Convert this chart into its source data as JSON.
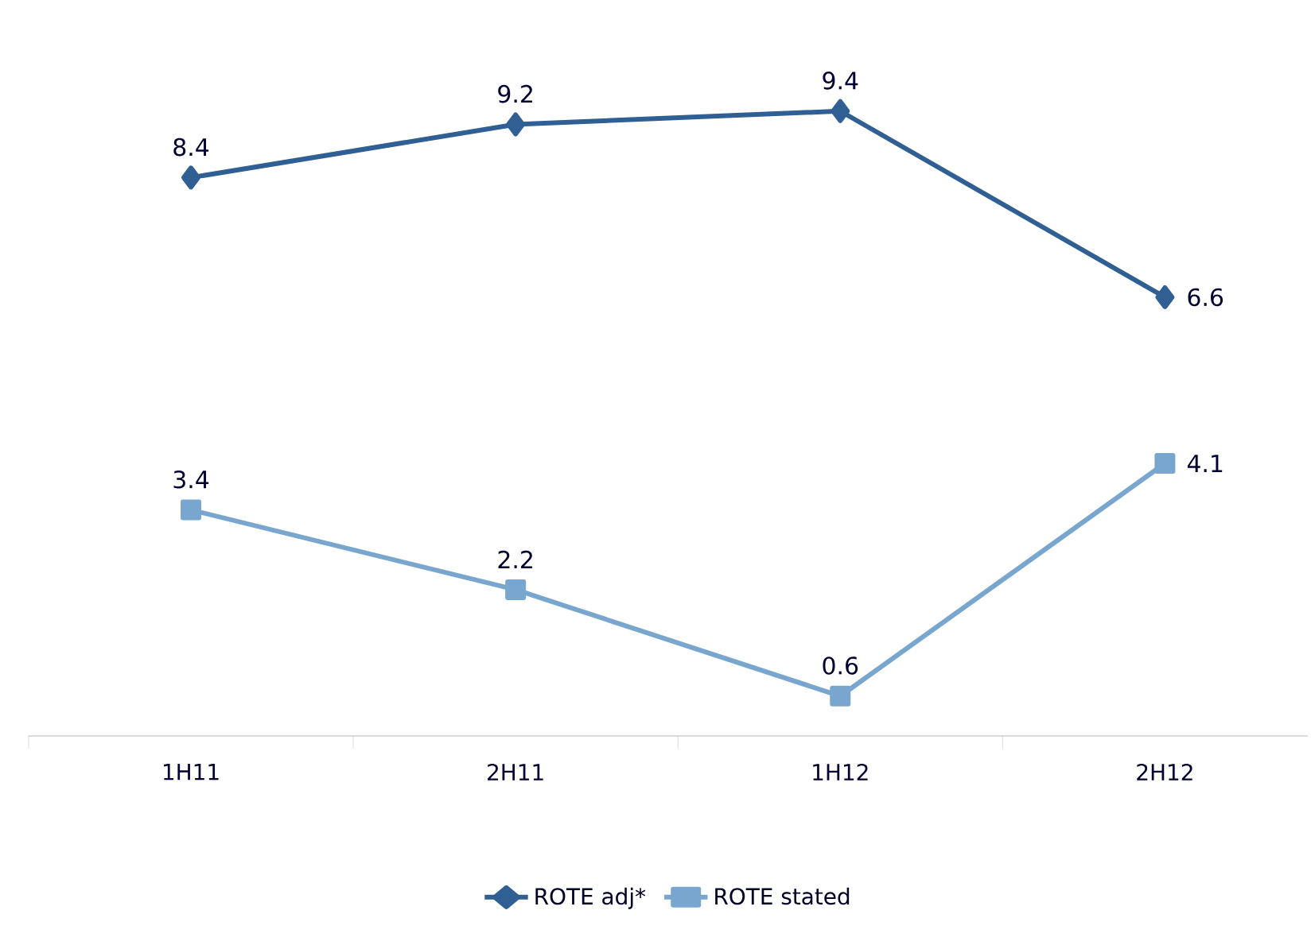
{
  "chart_data": {
    "type": "line",
    "categories": [
      "1H11",
      "2H11",
      "1H12",
      "2H12"
    ],
    "series": [
      {
        "name": "ROTE adj*",
        "color": "#2f5f93",
        "marker": "diamond",
        "values": [
          8.4,
          9.2,
          9.4,
          6.6
        ]
      },
      {
        "name": "ROTE stated",
        "color": "#79a6cf",
        "marker": "square",
        "values": [
          3.4,
          2.2,
          0.6,
          4.1
        ]
      }
    ],
    "data_labels": true,
    "legend": "bottom",
    "line_style": "solid"
  }
}
